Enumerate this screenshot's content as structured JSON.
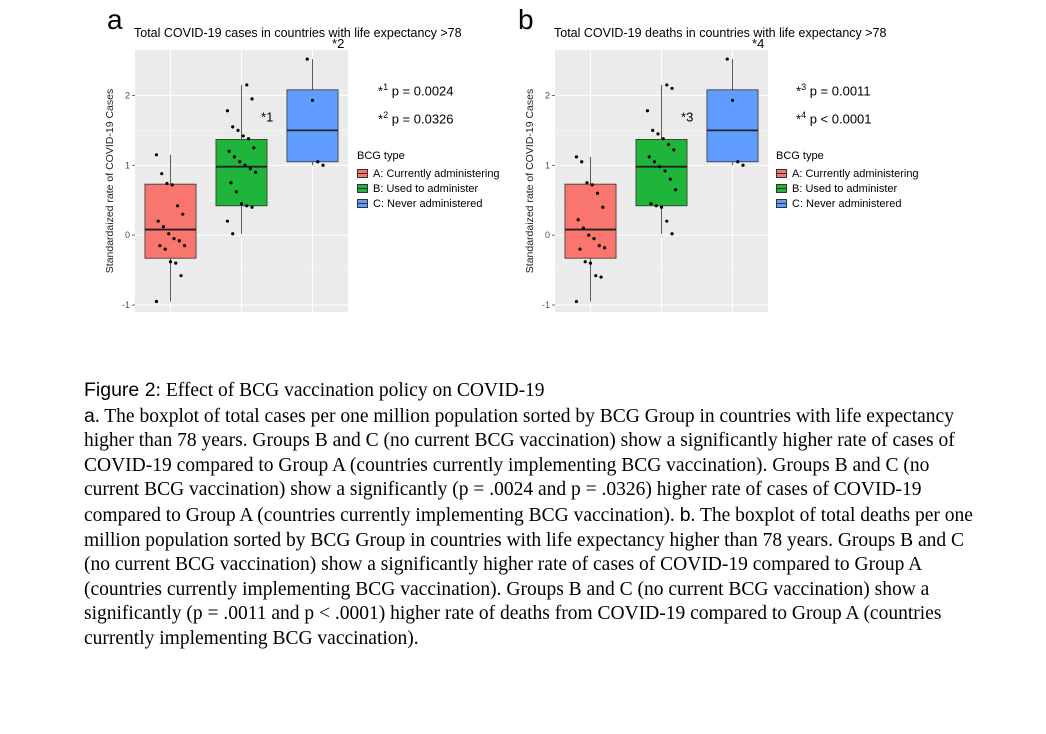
{
  "chart_data": [
    {
      "type": "boxplot",
      "panel": "a",
      "title": "Total COVID-19 cases in countries with life expectancy >78",
      "ylabel": "Standardaized rate of COVID-19 Cases",
      "xlabel": "",
      "ylim": [
        -1.1,
        2.65
      ],
      "yticks": [
        "-1",
        "0",
        "1",
        "2"
      ],
      "grid": true,
      "legend_placement": "right",
      "legend_title": "BCG type",
      "series": [
        {
          "name": "A: Currently administering",
          "color": "#F8766D",
          "min": -0.95,
          "q1": -0.33,
          "median": 0.08,
          "q3": 0.73,
          "max": 1.15,
          "points": [
            1.15,
            0.88,
            0.74,
            0.72,
            0.42,
            0.3,
            0.2,
            0.12,
            0.02,
            -0.05,
            -0.08,
            -0.15,
            -0.15,
            -0.2,
            -0.38,
            -0.4,
            -0.58,
            -0.95
          ]
        },
        {
          "name": "B: Used to administer",
          "color": "#1FB53B",
          "min": 0.02,
          "q1": 0.42,
          "median": 0.98,
          "q3": 1.37,
          "max": 2.15,
          "points": [
            2.15,
            1.95,
            1.78,
            1.55,
            1.5,
            1.42,
            1.38,
            1.25,
            1.2,
            1.12,
            1.05,
            1.0,
            0.95,
            0.9,
            0.75,
            0.62,
            0.45,
            0.42,
            0.4,
            0.2,
            0.02
          ]
        },
        {
          "name": "C: Never administered",
          "color": "#619CFF",
          "min": 1.0,
          "q1": 1.05,
          "median": 1.5,
          "q3": 2.08,
          "max": 2.52,
          "points": [
            2.52,
            1.93,
            1.05,
            1.0
          ]
        }
      ],
      "annotations": [
        {
          "series": "B",
          "label": "*1"
        },
        {
          "series": "C",
          "label": "*2"
        }
      ],
      "pvalues": [
        {
          "mark": "*",
          "sup": "1",
          "text": "p = 0.0024"
        },
        {
          "mark": "*",
          "sup": "2",
          "text": "p = 0.0326"
        }
      ]
    },
    {
      "type": "boxplot",
      "panel": "b",
      "title": "Total COVID-19 deaths in countries with life expectancy >78",
      "ylabel": "Standardaized rate of COVID-19 Cases",
      "xlabel": "",
      "ylim": [
        -1.1,
        2.65
      ],
      "yticks": [
        "-1",
        "0",
        "1",
        "2"
      ],
      "grid": true,
      "legend_placement": "right",
      "legend_title": "BCG type",
      "series": [
        {
          "name": "A: Currently administering",
          "color": "#F8766D",
          "min": -0.95,
          "q1": -0.33,
          "median": 0.08,
          "q3": 0.73,
          "max": 1.12,
          "points": [
            1.12,
            1.05,
            0.75,
            0.72,
            0.6,
            0.4,
            0.22,
            0.1,
            0.0,
            -0.05,
            -0.15,
            -0.18,
            -0.2,
            -0.38,
            -0.4,
            -0.58,
            -0.6,
            -0.95
          ]
        },
        {
          "name": "B: Used to administer",
          "color": "#1FB53B",
          "min": 0.02,
          "q1": 0.42,
          "median": 0.98,
          "q3": 1.37,
          "max": 2.15,
          "points": [
            2.15,
            2.1,
            1.78,
            1.5,
            1.45,
            1.38,
            1.3,
            1.22,
            1.12,
            1.05,
            0.98,
            0.92,
            0.8,
            0.65,
            0.45,
            0.42,
            0.4,
            0.2,
            0.02
          ]
        },
        {
          "name": "C: Never administered",
          "color": "#619CFF",
          "min": 1.0,
          "q1": 1.05,
          "median": 1.5,
          "q3": 2.08,
          "max": 2.52,
          "points": [
            2.52,
            1.93,
            1.05,
            1.0
          ]
        }
      ],
      "annotations": [
        {
          "series": "B",
          "label": "*3"
        },
        {
          "series": "C",
          "label": "*4"
        }
      ],
      "pvalues": [
        {
          "mark": "*",
          "sup": "3",
          "text": "p = 0.0011"
        },
        {
          "mark": "*",
          "sup": "4",
          "text": "p < 0.0001"
        }
      ]
    }
  ],
  "panels": {
    "a": {
      "letter": "a"
    },
    "b": {
      "letter": "b"
    }
  },
  "caption": {
    "figure_label": "Figure 2",
    "figure_title": ": Effect of BCG vaccination policy on COVID-19",
    "part_a_label": "a",
    "part_a_text": ". The boxplot of total cases per one million population sorted by BCG Group in countries with life expectancy higher than 78 years. Groups B and C (no current BCG vaccination) show a significantly higher rate of cases of COVID-19 compared to Group A (countries currently implementing BCG vaccination). Groups B and C (no current BCG vaccination) show a significantly (p = .0024 and p = .0326) higher rate of cases of COVID-19 compared to Group A (countries currently implementing BCG vaccination). ",
    "part_b_label": "b",
    "part_b_text": ". The boxplot of total deaths per one million population sorted by BCG Group in countries with life expectancy higher than 78 years. Groups B and C (no current BCG vaccination) show a significantly higher rate of cases of COVID-19 compared to Group A (countries currently implementing BCG vaccination). Groups B and C (no current BCG vaccination) show a significantly (p = .0011 and p < .0001) higher rate of deaths from COVID-19 compared to Group A (countries currently implementing BCG vaccination)."
  }
}
